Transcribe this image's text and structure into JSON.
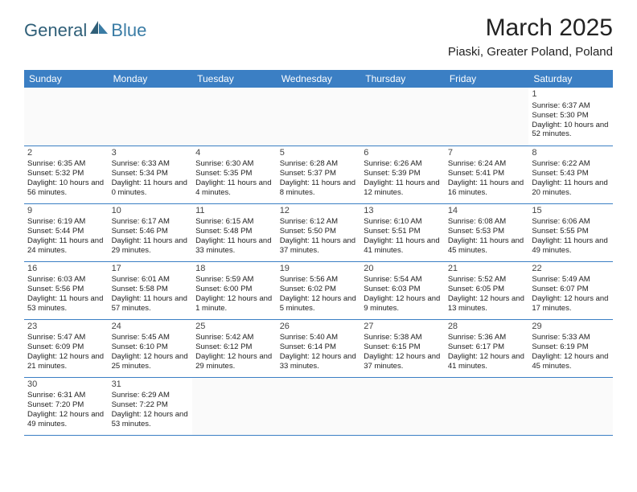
{
  "logo": {
    "text1": "General",
    "text2": "Blue"
  },
  "title": "March 2025",
  "location": "Piaski, Greater Poland, Poland",
  "colors": {
    "header_bg": "#3b7fc4",
    "header_fg": "#ffffff",
    "row_border": "#3b7fc4",
    "logo_dark": "#2f5f78",
    "logo_blue": "#3a7ca5"
  },
  "day_headers": [
    "Sunday",
    "Monday",
    "Tuesday",
    "Wednesday",
    "Thursday",
    "Friday",
    "Saturday"
  ],
  "weeks": [
    [
      null,
      null,
      null,
      null,
      null,
      null,
      {
        "n": "1",
        "rise": "6:37 AM",
        "set": "5:30 PM",
        "dl": "10 hours and 52 minutes."
      }
    ],
    [
      {
        "n": "2",
        "rise": "6:35 AM",
        "set": "5:32 PM",
        "dl": "10 hours and 56 minutes."
      },
      {
        "n": "3",
        "rise": "6:33 AM",
        "set": "5:34 PM",
        "dl": "11 hours and 0 minutes."
      },
      {
        "n": "4",
        "rise": "6:30 AM",
        "set": "5:35 PM",
        "dl": "11 hours and 4 minutes."
      },
      {
        "n": "5",
        "rise": "6:28 AM",
        "set": "5:37 PM",
        "dl": "11 hours and 8 minutes."
      },
      {
        "n": "6",
        "rise": "6:26 AM",
        "set": "5:39 PM",
        "dl": "11 hours and 12 minutes."
      },
      {
        "n": "7",
        "rise": "6:24 AM",
        "set": "5:41 PM",
        "dl": "11 hours and 16 minutes."
      },
      {
        "n": "8",
        "rise": "6:22 AM",
        "set": "5:43 PM",
        "dl": "11 hours and 20 minutes."
      }
    ],
    [
      {
        "n": "9",
        "rise": "6:19 AM",
        "set": "5:44 PM",
        "dl": "11 hours and 24 minutes."
      },
      {
        "n": "10",
        "rise": "6:17 AM",
        "set": "5:46 PM",
        "dl": "11 hours and 29 minutes."
      },
      {
        "n": "11",
        "rise": "6:15 AM",
        "set": "5:48 PM",
        "dl": "11 hours and 33 minutes."
      },
      {
        "n": "12",
        "rise": "6:12 AM",
        "set": "5:50 PM",
        "dl": "11 hours and 37 minutes."
      },
      {
        "n": "13",
        "rise": "6:10 AM",
        "set": "5:51 PM",
        "dl": "11 hours and 41 minutes."
      },
      {
        "n": "14",
        "rise": "6:08 AM",
        "set": "5:53 PM",
        "dl": "11 hours and 45 minutes."
      },
      {
        "n": "15",
        "rise": "6:06 AM",
        "set": "5:55 PM",
        "dl": "11 hours and 49 minutes."
      }
    ],
    [
      {
        "n": "16",
        "rise": "6:03 AM",
        "set": "5:56 PM",
        "dl": "11 hours and 53 minutes."
      },
      {
        "n": "17",
        "rise": "6:01 AM",
        "set": "5:58 PM",
        "dl": "11 hours and 57 minutes."
      },
      {
        "n": "18",
        "rise": "5:59 AM",
        "set": "6:00 PM",
        "dl": "12 hours and 1 minute."
      },
      {
        "n": "19",
        "rise": "5:56 AM",
        "set": "6:02 PM",
        "dl": "12 hours and 5 minutes."
      },
      {
        "n": "20",
        "rise": "5:54 AM",
        "set": "6:03 PM",
        "dl": "12 hours and 9 minutes."
      },
      {
        "n": "21",
        "rise": "5:52 AM",
        "set": "6:05 PM",
        "dl": "12 hours and 13 minutes."
      },
      {
        "n": "22",
        "rise": "5:49 AM",
        "set": "6:07 PM",
        "dl": "12 hours and 17 minutes."
      }
    ],
    [
      {
        "n": "23",
        "rise": "5:47 AM",
        "set": "6:09 PM",
        "dl": "12 hours and 21 minutes."
      },
      {
        "n": "24",
        "rise": "5:45 AM",
        "set": "6:10 PM",
        "dl": "12 hours and 25 minutes."
      },
      {
        "n": "25",
        "rise": "5:42 AM",
        "set": "6:12 PM",
        "dl": "12 hours and 29 minutes."
      },
      {
        "n": "26",
        "rise": "5:40 AM",
        "set": "6:14 PM",
        "dl": "12 hours and 33 minutes."
      },
      {
        "n": "27",
        "rise": "5:38 AM",
        "set": "6:15 PM",
        "dl": "12 hours and 37 minutes."
      },
      {
        "n": "28",
        "rise": "5:36 AM",
        "set": "6:17 PM",
        "dl": "12 hours and 41 minutes."
      },
      {
        "n": "29",
        "rise": "5:33 AM",
        "set": "6:19 PM",
        "dl": "12 hours and 45 minutes."
      }
    ],
    [
      {
        "n": "30",
        "rise": "6:31 AM",
        "set": "7:20 PM",
        "dl": "12 hours and 49 minutes."
      },
      {
        "n": "31",
        "rise": "6:29 AM",
        "set": "7:22 PM",
        "dl": "12 hours and 53 minutes."
      },
      null,
      null,
      null,
      null,
      null
    ]
  ],
  "labels": {
    "sunrise": "Sunrise:",
    "sunset": "Sunset:",
    "daylight": "Daylight:"
  }
}
